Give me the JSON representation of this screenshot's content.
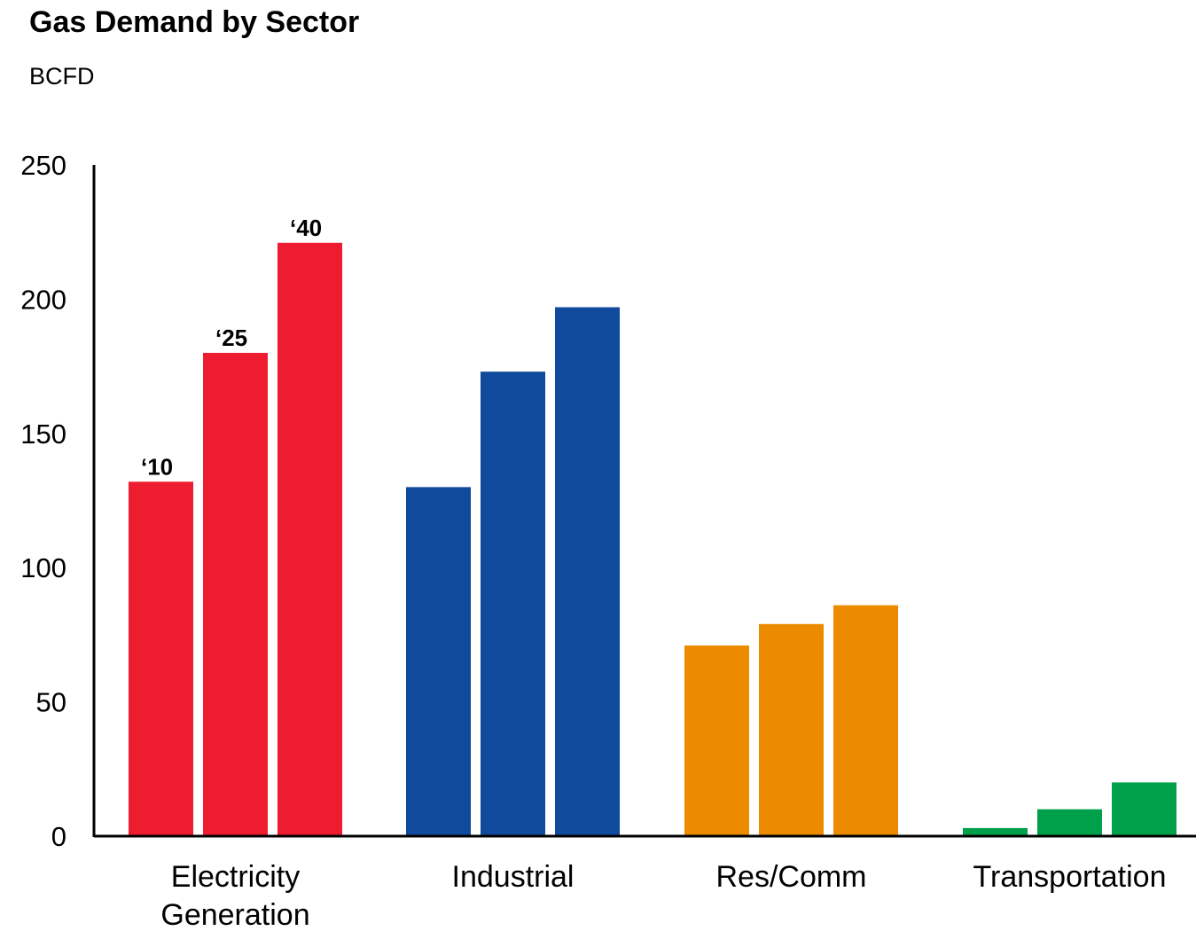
{
  "chart_data": {
    "type": "bar",
    "title": "Gas Demand by Sector",
    "subtitle": "BCFD",
    "xlabel": "",
    "ylabel": "",
    "ylim": [
      0,
      250
    ],
    "yticks": [
      0,
      50,
      100,
      150,
      200,
      250
    ],
    "grid": false,
    "legend": "none",
    "categories": [
      [
        "Electricity",
        "Generation"
      ],
      [
        "Industrial"
      ],
      [
        "Res/Comm"
      ],
      [
        "Transportation"
      ]
    ],
    "category_colors": [
      "#ed1c2e",
      "#0f4a9c",
      "#ed8b00",
      "#00a04b"
    ],
    "series": [
      {
        "values": [
          132,
          130,
          71,
          3
        ]
      },
      {
        "values": [
          180,
          173,
          79,
          10
        ]
      },
      {
        "values": [
          221,
          197,
          86,
          20
        ]
      }
    ],
    "year_labels": [
      "‘10",
      "‘25",
      "‘40"
    ]
  }
}
